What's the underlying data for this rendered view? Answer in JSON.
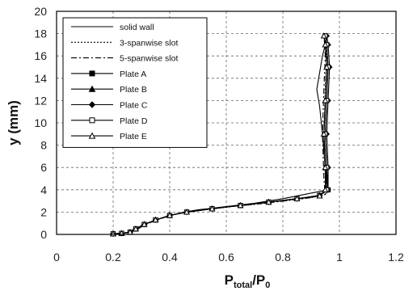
{
  "chart_data": {
    "type": "line",
    "xlabel": "P_total/P_0",
    "xlabel_main": "P",
    "xlabel_sub1": "total",
    "xlabel_slash": "/P",
    "xlabel_sub2": "0",
    "ylabel": "y (mm)",
    "xlim": [
      0,
      1.2
    ],
    "ylim": [
      0,
      20
    ],
    "x_ticks": [
      0,
      0.2,
      0.4,
      0.6,
      0.8,
      1,
      1.2
    ],
    "x_tick_labels": [
      "0",
      "0.2",
      "0.4",
      "0.6",
      "0.8",
      "1",
      "1.2"
    ],
    "y_ticks": [
      0,
      2,
      4,
      6,
      8,
      10,
      12,
      14,
      16,
      18,
      20
    ],
    "y_tick_labels": [
      "0",
      "2",
      "4",
      "6",
      "8",
      "10",
      "12",
      "14",
      "16",
      "18",
      "20"
    ],
    "grid": true,
    "legend_position": "top-left",
    "series": [
      {
        "name": "solid wall",
        "marker": "none",
        "dash": "solid",
        "color": "#000000",
        "x": [
          0.2,
          0.24,
          0.27,
          0.3,
          0.35,
          0.4,
          0.45,
          0.5,
          0.6,
          0.7,
          0.8,
          0.88,
          0.94,
          0.96,
          0.95,
          0.94,
          0.93,
          0.92,
          0.93,
          0.94,
          0.95,
          0.955,
          0.95
        ],
        "y": [
          0.05,
          0.1,
          0.3,
          0.8,
          1.3,
          1.7,
          2.0,
          2.2,
          2.5,
          2.8,
          3.2,
          3.6,
          3.9,
          4.2,
          6.0,
          9.0,
          11.5,
          13.0,
          14.5,
          16.0,
          17.0,
          17.6,
          18.0
        ]
      },
      {
        "name": "3-spanwise slot",
        "marker": "none",
        "dash": "dotted",
        "color": "#000000",
        "x": [
          0.21,
          0.25,
          0.28,
          0.31,
          0.36,
          0.41,
          0.46,
          0.52,
          0.62,
          0.72,
          0.82,
          0.9,
          0.955,
          0.95,
          0.945,
          0.95,
          0.955,
          0.95
        ],
        "y": [
          0.05,
          0.15,
          0.35,
          0.85,
          1.35,
          1.75,
          2.05,
          2.25,
          2.5,
          2.75,
          3.05,
          3.3,
          3.6,
          5.0,
          9.0,
          13.0,
          16.0,
          18.0
        ]
      },
      {
        "name": "5-spanwise slot",
        "marker": "none",
        "dash": "dashdot",
        "color": "#000000",
        "x": [
          0.21,
          0.25,
          0.28,
          0.31,
          0.36,
          0.41,
          0.46,
          0.52,
          0.62,
          0.72,
          0.82,
          0.9,
          0.95,
          0.945,
          0.94,
          0.945,
          0.95,
          0.945
        ],
        "y": [
          0.05,
          0.15,
          0.35,
          0.85,
          1.35,
          1.75,
          2.05,
          2.25,
          2.5,
          2.75,
          3.05,
          3.3,
          3.6,
          5.0,
          9.0,
          13.0,
          16.0,
          18.0
        ]
      },
      {
        "name": "Plate A",
        "marker": "square-filled",
        "dash": "solid",
        "color": "#000000",
        "x": [
          0.2,
          0.23,
          0.26,
          0.28,
          0.31,
          0.35,
          0.4,
          0.46,
          0.55,
          0.65,
          0.75,
          0.85,
          0.93,
          0.96,
          0.955,
          0.95,
          0.955,
          0.96,
          0.955,
          0.95
        ],
        "y": [
          0.05,
          0.1,
          0.2,
          0.5,
          0.9,
          1.3,
          1.7,
          2.0,
          2.3,
          2.6,
          2.9,
          3.2,
          3.5,
          4.0,
          6.0,
          9.0,
          12.0,
          15.0,
          17.0,
          17.8
        ]
      },
      {
        "name": "Plate B",
        "marker": "triangle-filled",
        "dash": "solid",
        "color": "#000000",
        "x": [
          0.2,
          0.23,
          0.26,
          0.28,
          0.31,
          0.35,
          0.4,
          0.46,
          0.55,
          0.65,
          0.75,
          0.85,
          0.93,
          0.955,
          0.95,
          0.945,
          0.95,
          0.955,
          0.95,
          0.945
        ],
        "y": [
          0.05,
          0.1,
          0.2,
          0.5,
          0.9,
          1.3,
          1.7,
          2.0,
          2.3,
          2.6,
          2.9,
          3.2,
          3.45,
          4.0,
          6.0,
          9.0,
          12.0,
          15.0,
          17.0,
          17.8
        ]
      },
      {
        "name": "Plate C",
        "marker": "diamond-filled",
        "dash": "solid",
        "color": "#000000",
        "x": [
          0.2,
          0.23,
          0.26,
          0.28,
          0.31,
          0.35,
          0.4,
          0.46,
          0.55,
          0.65,
          0.75,
          0.85,
          0.93,
          0.96,
          0.96,
          0.955,
          0.96,
          0.965,
          0.96,
          0.955
        ],
        "y": [
          0.05,
          0.1,
          0.2,
          0.5,
          0.9,
          1.3,
          1.7,
          2.0,
          2.3,
          2.6,
          2.9,
          3.2,
          3.5,
          4.0,
          6.0,
          9.0,
          12.0,
          15.0,
          17.0,
          17.8
        ]
      },
      {
        "name": "Plate D",
        "marker": "square-open",
        "dash": "solid",
        "color": "#000000",
        "x": [
          0.2,
          0.23,
          0.26,
          0.28,
          0.31,
          0.35,
          0.4,
          0.46,
          0.55,
          0.65,
          0.75,
          0.85,
          0.93,
          0.955,
          0.955,
          0.95,
          0.955,
          0.96,
          0.955,
          0.95
        ],
        "y": [
          0.05,
          0.1,
          0.2,
          0.5,
          0.9,
          1.3,
          1.7,
          2.0,
          2.3,
          2.6,
          2.9,
          3.2,
          3.45,
          4.0,
          6.0,
          9.0,
          12.0,
          15.0,
          17.0,
          17.8
        ]
      },
      {
        "name": "Plate E",
        "marker": "triangle-open",
        "dash": "solid",
        "color": "#000000",
        "x": [
          0.2,
          0.23,
          0.26,
          0.28,
          0.31,
          0.35,
          0.4,
          0.46,
          0.55,
          0.65,
          0.75,
          0.85,
          0.93,
          0.95,
          0.95,
          0.945,
          0.95,
          0.955,
          0.95,
          0.945
        ],
        "y": [
          0.05,
          0.1,
          0.2,
          0.5,
          0.9,
          1.3,
          1.7,
          2.0,
          2.3,
          2.6,
          2.9,
          3.2,
          3.45,
          4.0,
          6.0,
          9.0,
          12.0,
          15.0,
          17.0,
          17.8
        ]
      }
    ]
  }
}
